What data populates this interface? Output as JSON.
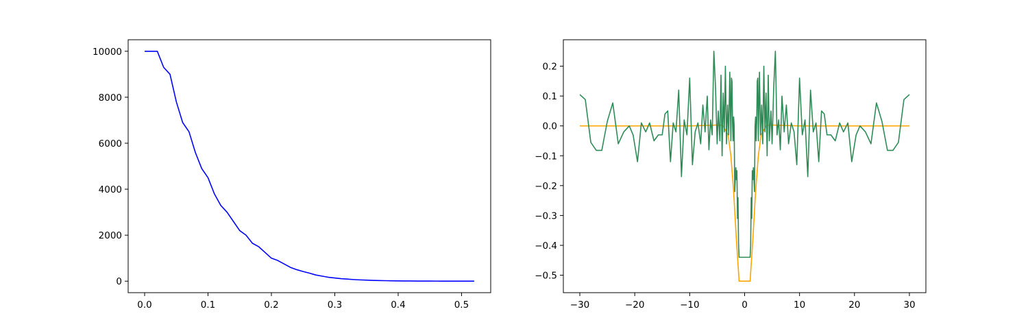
{
  "chart_data": [
    {
      "type": "line",
      "series": [
        {
          "color": "#0000ff",
          "x": [
            0,
            0.01,
            0.02,
            0.03,
            0.04,
            0.05,
            0.06,
            0.07,
            0.08,
            0.09,
            0.1,
            0.11,
            0.12,
            0.13,
            0.14,
            0.15,
            0.16,
            0.17,
            0.18,
            0.19,
            0.2,
            0.21,
            0.22,
            0.23,
            0.24,
            0.25,
            0.26,
            0.27,
            0.28,
            0.29,
            0.3,
            0.31,
            0.32,
            0.33,
            0.34,
            0.35,
            0.36,
            0.37,
            0.38,
            0.39,
            0.4,
            0.41,
            0.42,
            0.43,
            0.44,
            0.45,
            0.46,
            0.47,
            0.48,
            0.49,
            0.5,
            0.51,
            0.52
          ],
          "values": [
            10000,
            10000,
            10000,
            9300,
            9000,
            7800,
            6900,
            6500,
            5600,
            4900,
            4500,
            3800,
            3300,
            3000,
            2600,
            2200,
            2000,
            1650,
            1500,
            1250,
            1000,
            900,
            750,
            600,
            500,
            420,
            350,
            270,
            220,
            170,
            140,
            110,
            90,
            70,
            55,
            45,
            35,
            28,
            22,
            17,
            13,
            10,
            8,
            6,
            5,
            4,
            3,
            2,
            2,
            1,
            1,
            1,
            1
          ]
        }
      ],
      "xlim": [
        -0.026,
        0.546
      ],
      "ylim": [
        -500,
        10500
      ],
      "xticks": [
        {
          "value": 0,
          "label": "0.0"
        },
        0.1,
        0.2,
        0.3,
        0.4,
        0.5
      ],
      "yticks": [
        0,
        2000,
        4000,
        6000,
        8000,
        10000
      ]
    },
    {
      "type": "line",
      "series": [
        {
          "color": "#ffa500",
          "x": [
            -30,
            -25,
            -20,
            -15,
            -10,
            -6,
            -5,
            -4,
            -3,
            -2.5,
            -2,
            -1.5,
            -1,
            1,
            1.5,
            2,
            2.5,
            3,
            4,
            5,
            6,
            10,
            15,
            20,
            25,
            30
          ],
          "values": [
            0,
            0,
            0,
            0,
            0,
            0.002,
            0.003,
            0.002,
            -0.03,
            -0.1,
            -0.22,
            -0.38,
            -0.52,
            -0.52,
            -0.38,
            -0.22,
            -0.1,
            -0.03,
            0.002,
            0.003,
            0.002,
            0,
            0,
            0,
            0,
            0
          ]
        },
        {
          "color": "#2e8b57",
          "x": [
            -30,
            -29,
            -28,
            -27,
            -26,
            -25,
            -24,
            -23,
            -22,
            -21.0,
            -20.3,
            -19.5,
            -18.8,
            -18.0,
            -17.3,
            -16.5,
            -15.7,
            -15.0,
            -14.5,
            -14.0,
            -13.5,
            -13.0,
            -12.5,
            -12.0,
            -11.5,
            -11.0,
            -10.5,
            -10.0,
            -9.5,
            -9.0,
            -8.5,
            -8.0,
            -7.6,
            -7.2,
            -6.8,
            -6.5,
            -6.2,
            -5.9,
            -5.6,
            -5.3,
            -5.0,
            -4.8,
            -4.5,
            -4.3,
            -4.1,
            -3.9,
            -3.7,
            -3.5,
            -3.3,
            -3.1,
            -2.9,
            -2.7,
            -2.5,
            -2.4,
            -2.3,
            -2.2,
            -2.1,
            -2.0,
            -1.9,
            -1.8,
            -1.6,
            -1.5,
            -1.4,
            -1.3,
            -1.2,
            -1.1,
            -1.0,
            1.0,
            1.1,
            1.2,
            1.3,
            1.4,
            1.5,
            1.6,
            1.8,
            1.9,
            2.0,
            2.1,
            2.2,
            2.3,
            2.4,
            2.5,
            2.7,
            2.9,
            3.1,
            3.3,
            3.5,
            3.7,
            3.9,
            4.1,
            4.3,
            4.5,
            4.8,
            5.0,
            5.3,
            5.6,
            5.9,
            6.2,
            6.5,
            6.8,
            7.2,
            7.6,
            8.0,
            8.5,
            9.0,
            9.5,
            10.0,
            10.5,
            11.0,
            11.5,
            12.0,
            12.5,
            13.0,
            13.5,
            14.0,
            14.5,
            15.0,
            15.7,
            16.5,
            17.3,
            18.0,
            18.8,
            19.5,
            20.3,
            21.0,
            22,
            23,
            24,
            25,
            26,
            27,
            28,
            29,
            30
          ],
          "values": [
            0.105,
            0.088,
            -0.055,
            -0.082,
            -0.082,
            0.015,
            0.077,
            -0.06,
            -0.02,
            0.0,
            -0.03,
            -0.12,
            0.01,
            -0.02,
            0.01,
            -0.05,
            -0.03,
            -0.03,
            0.04,
            0.05,
            -0.12,
            0.01,
            -0.02,
            0.12,
            -0.17,
            0.02,
            -0.03,
            0.16,
            -0.13,
            -0.02,
            0.01,
            -0.06,
            0.07,
            -0.02,
            0.1,
            -0.08,
            0.02,
            -0.03,
            0.25,
            0.13,
            -0.06,
            0.05,
            -0.05,
            0.17,
            -0.1,
            0.11,
            -0.02,
            0.2,
            -0.06,
            0.07,
            -0.03,
            0.18,
            -0.05,
            0.16,
            0.15,
            0.01,
            -0.05,
            0.03,
            0.0,
            -0.22,
            -0.14,
            -0.18,
            -0.15,
            -0.31,
            -0.24,
            -0.4,
            -0.44,
            -0.44,
            -0.4,
            -0.24,
            -0.31,
            -0.15,
            -0.18,
            -0.14,
            -0.22,
            0.0,
            0.03,
            -0.05,
            0.01,
            0.15,
            0.16,
            -0.05,
            0.18,
            -0.03,
            0.07,
            -0.06,
            0.2,
            -0.02,
            0.11,
            -0.1,
            0.17,
            -0.05,
            0.05,
            -0.06,
            0.13,
            0.25,
            -0.03,
            0.02,
            -0.08,
            0.1,
            -0.02,
            0.07,
            -0.06,
            0.01,
            -0.02,
            -0.13,
            0.16,
            -0.03,
            0.02,
            -0.17,
            0.12,
            -0.02,
            0.01,
            -0.12,
            0.05,
            0.04,
            -0.03,
            -0.03,
            -0.05,
            0.01,
            -0.02,
            0.01,
            -0.12,
            -0.03,
            0.0,
            -0.02,
            -0.06,
            0.077,
            0.015,
            -0.082,
            -0.082,
            -0.055,
            0.088,
            0.105
          ]
        }
      ],
      "xlim": [
        -33,
        33
      ],
      "ylim": [
        -0.5585,
        0.2885
      ],
      "xticks": [
        {
          "value": -30,
          "label": "−30"
        },
        {
          "value": -20,
          "label": "−20"
        },
        {
          "value": -10,
          "label": "−10"
        },
        0,
        10,
        20,
        30
      ],
      "yticks": [
        {
          "value": -0.5,
          "label": "−0.5"
        },
        {
          "value": -0.4,
          "label": "−0.4"
        },
        {
          "value": -0.3,
          "label": "−0.3"
        },
        {
          "value": -0.2,
          "label": "−0.2"
        },
        {
          "value": -0.1,
          "label": "−0.1"
        },
        {
          "value": 0,
          "label": "0.0"
        },
        0.1,
        0.2
      ]
    }
  ]
}
